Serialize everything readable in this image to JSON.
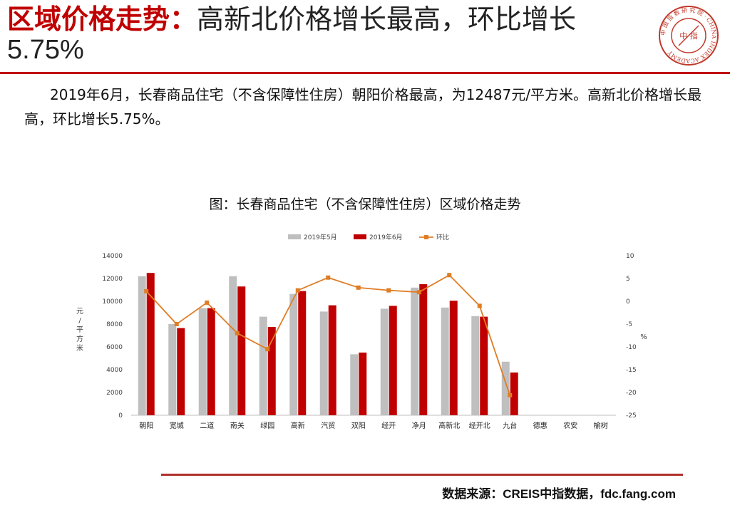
{
  "header": {
    "title_red": "区域价格走势：",
    "title_rest": "高新北价格增长最高，环比增长",
    "title_line2": "5.75%",
    "logo_text": "中 国 指 数 研 究 院 · CHINA INDEX ACADEMY",
    "logo_center": "中 指"
  },
  "summary": "2019年6月，长春商品住宅（不含保障性住房）朝阳价格最高，为12487元/平方米。高新北价格增长最高，环比增长5.75%。",
  "chart_heading": "图：长春商品住宅（不含保障性住房）区域价格走势",
  "chart_data": {
    "type": "bar",
    "categories": [
      "朝阳",
      "宽城",
      "二道",
      "南关",
      "绿园",
      "高新",
      "汽贸",
      "双阳",
      "经开",
      "净月",
      "高新北",
      "经开北",
      "九台",
      "德惠",
      "农安",
      "榆树"
    ],
    "series": [
      {
        "name": "2019年5月",
        "type": "bar",
        "color": "#bfbfbf",
        "values": [
          12200,
          8000,
          9400,
          12200,
          8650,
          10650,
          9100,
          5350,
          9350,
          11200,
          9450,
          8700,
          4700,
          null,
          null,
          null
        ]
      },
      {
        "name": "2019年6月",
        "type": "bar",
        "color": "#c00000",
        "values": [
          12487,
          7650,
          9400,
          11300,
          7750,
          10900,
          9650,
          5500,
          9600,
          11500,
          10050,
          8650,
          3750,
          null,
          null,
          null
        ]
      },
      {
        "name": "环比",
        "type": "line",
        "axis": "right",
        "color": "#e07c24",
        "values": [
          2.2,
          -5.0,
          -0.3,
          -7.0,
          -10.5,
          2.4,
          5.2,
          3.0,
          2.4,
          2.0,
          5.75,
          -1.0,
          -20.6,
          null,
          null,
          null
        ]
      }
    ],
    "y_left": {
      "label": "元/平方米",
      "min": 0,
      "max": 14000,
      "ticks": [
        "0",
        "2000",
        "4000",
        "6000",
        "8000",
        "10000",
        "12000",
        "14000"
      ]
    },
    "y_right": {
      "label": "%",
      "min": -25,
      "max": 10,
      "ticks": [
        "-25",
        "-20",
        "-15",
        "-10",
        "-5",
        "0",
        "5",
        "10"
      ]
    },
    "legend_position": "top",
    "grid": false
  },
  "footer": {
    "source": "数据来源：CREIS中指数据，fdc.fang.com"
  }
}
